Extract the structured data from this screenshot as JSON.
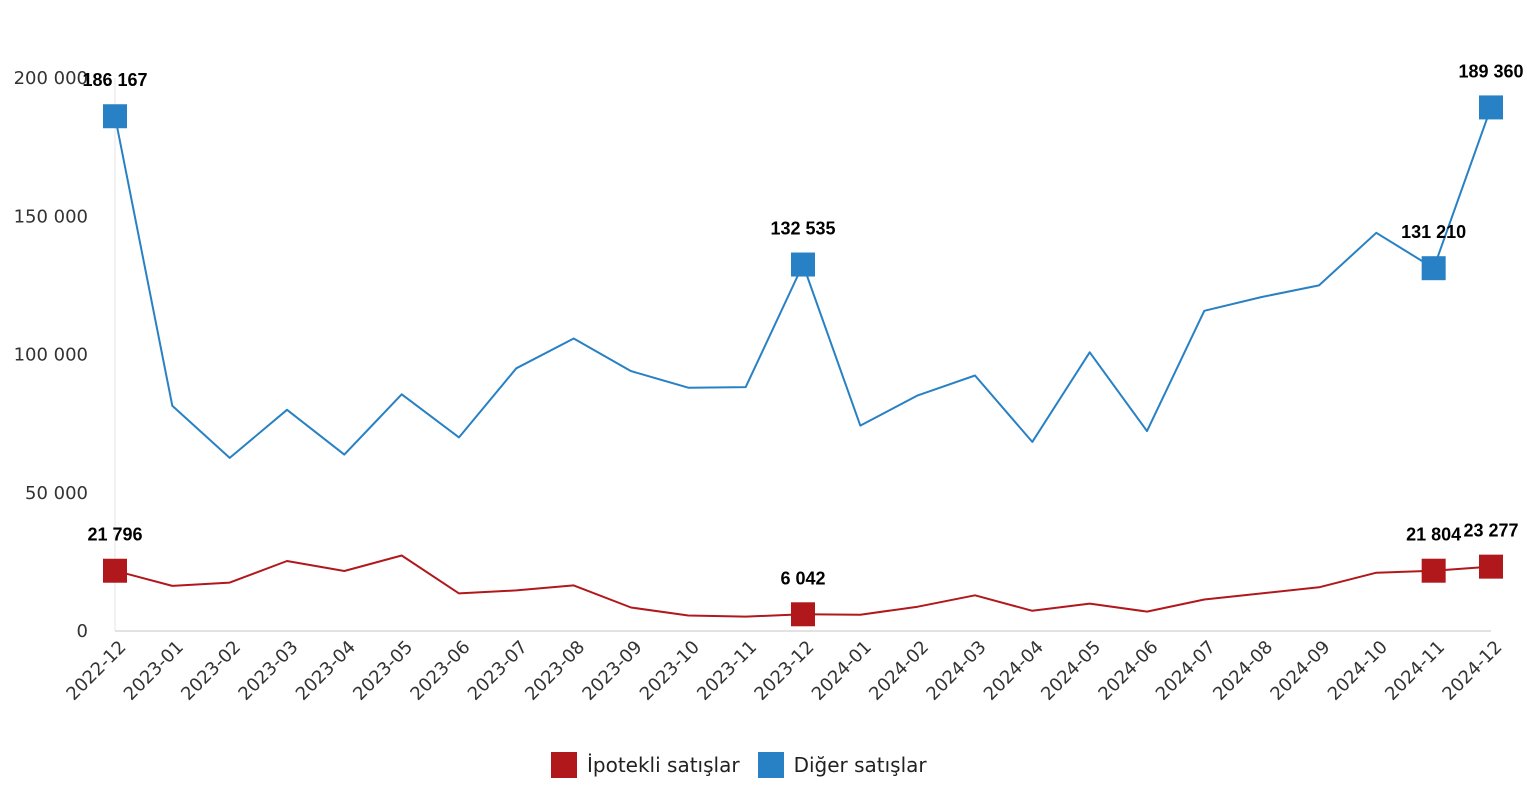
{
  "chart_data": {
    "type": "line",
    "categories": [
      "2022-12",
      "2023-01",
      "2023-02",
      "2023-03",
      "2023-04",
      "2023-05",
      "2023-06",
      "2023-07",
      "2023-08",
      "2023-09",
      "2023-10",
      "2023-11",
      "2023-12",
      "2024-01",
      "2024-02",
      "2024-03",
      "2024-04",
      "2024-05",
      "2024-06",
      "2024-07",
      "2024-08",
      "2024-09",
      "2024-10",
      "2024-11",
      "2024-12"
    ],
    "series": [
      {
        "name": "İpotekli satışlar",
        "color": "#b0181c",
        "values": [
          21796,
          16300,
          17500,
          25300,
          21700,
          27300,
          13600,
          14700,
          16500,
          8500,
          5600,
          5200,
          6042,
          5900,
          8800,
          12900,
          7300,
          9900,
          7000,
          11400,
          13600,
          15800,
          21100,
          21804,
          23277
        ],
        "labeled": [
          {
            "index": 0,
            "text": "21 796"
          },
          {
            "index": 12,
            "text": "6 042"
          },
          {
            "index": 23,
            "text": "21 804"
          },
          {
            "index": 24,
            "text": "23 277"
          }
        ]
      },
      {
        "name": "Diğer satışlar",
        "color": "#2781c4",
        "values": [
          186167,
          81500,
          62600,
          80000,
          63800,
          85600,
          70000,
          95000,
          105800,
          94000,
          88000,
          88200,
          132535,
          74300,
          85200,
          92400,
          68400,
          100800,
          72300,
          115800,
          120800,
          125000,
          144000,
          131210,
          189360
        ],
        "labeled": [
          {
            "index": 0,
            "text": "186 167"
          },
          {
            "index": 12,
            "text": "132 535"
          },
          {
            "index": 23,
            "text": "131 210"
          },
          {
            "index": 24,
            "text": "189 360"
          }
        ]
      }
    ],
    "y_ticks": [
      "0",
      "50 000",
      "100 000",
      "150 000",
      "200 000"
    ],
    "y_tick_values": [
      0,
      50000,
      100000,
      150000,
      200000
    ],
    "ylim": [
      0,
      200000
    ],
    "grid": false,
    "legend_position": "bottom-center",
    "xlabel": "",
    "ylabel": "",
    "title": ""
  }
}
